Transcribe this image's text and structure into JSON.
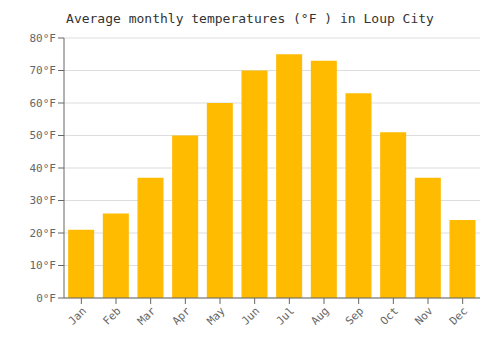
{
  "chart_data": {
    "type": "bar",
    "title": "Average monthly temperatures (°F ) in Loup City",
    "categories": [
      "Jan",
      "Feb",
      "Mar",
      "Apr",
      "May",
      "Jun",
      "Jul",
      "Aug",
      "Sep",
      "Oct",
      "Nov",
      "Dec"
    ],
    "values": [
      21,
      26,
      37,
      50,
      60,
      70,
      75,
      73,
      63,
      51,
      37,
      24
    ],
    "color": "#FFBB00",
    "ylim": [
      0,
      80
    ],
    "yticks": [
      {
        "value": 0,
        "label": "0°F"
      },
      {
        "value": 10,
        "label": "10°F"
      },
      {
        "value": 20,
        "label": "20°F"
      },
      {
        "value": 30,
        "label": "30°F"
      },
      {
        "value": 40,
        "label": "40°F"
      },
      {
        "value": 50,
        "label": "50°F"
      },
      {
        "value": 60,
        "label": "60°F"
      },
      {
        "value": 70,
        "label": "70°F"
      },
      {
        "value": 80,
        "label": "80°F"
      }
    ],
    "grid": true
  }
}
